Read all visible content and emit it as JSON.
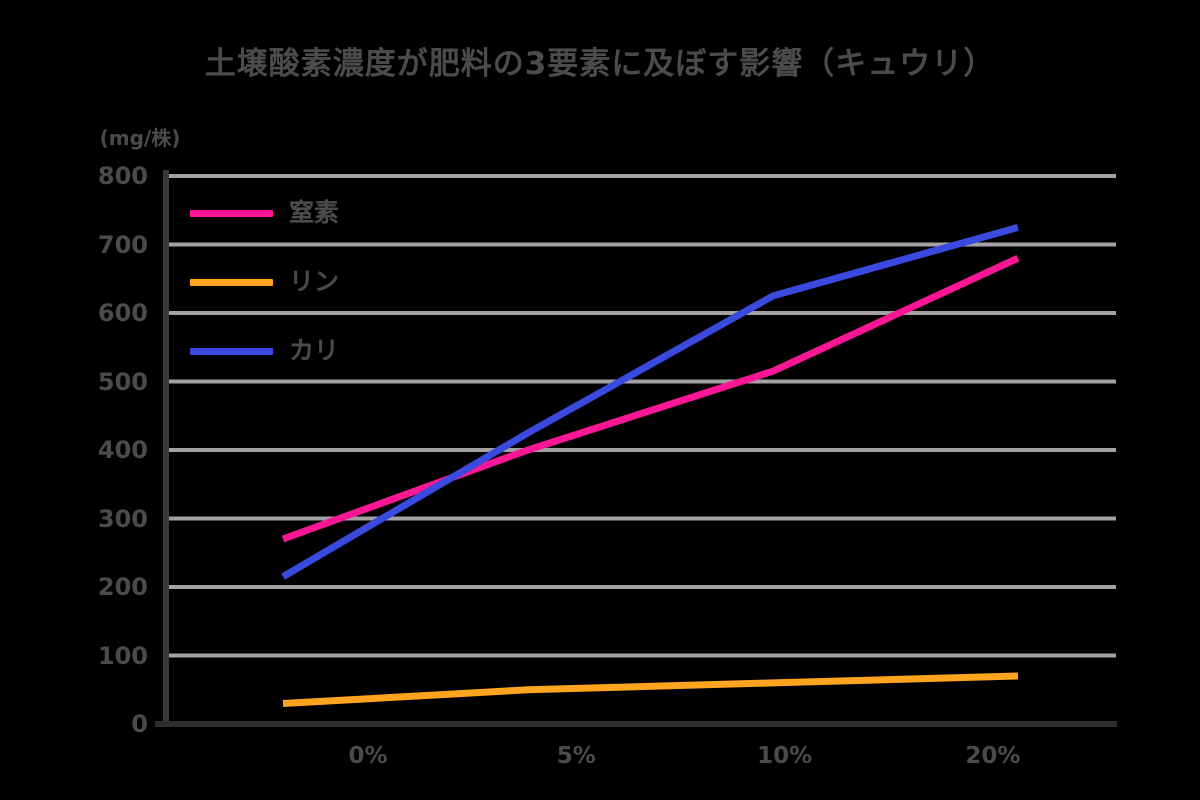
{
  "title": "土壌酸素濃度が肥料の3要素に及ぼす影響（キュウリ）",
  "unit_label": "(mg/株)",
  "colors": {
    "background": "#000000",
    "text": "#4b4b4b",
    "grid": "#a2a2a2",
    "y_axis": "#3a3a3a",
    "x_axis": "#2e2e2e"
  },
  "chart_data": {
    "type": "line",
    "title": "土壌酸素濃度が肥料の3要素に及ぼす影響（キュウリ）",
    "ylabel": "(mg/株)",
    "xlabel": "",
    "categories": [
      "0%",
      "5%",
      "10%",
      "20%"
    ],
    "series": [
      {
        "name": "窒素",
        "color": "#fa1694",
        "values": [
          270,
          400,
          515,
          680
        ]
      },
      {
        "name": "リン",
        "color": "#ffa41e",
        "values": [
          30,
          50,
          60,
          70
        ]
      },
      {
        "name": "カリ",
        "color": "#3a4adf",
        "values": [
          215,
          425,
          625,
          725
        ]
      }
    ],
    "ylim": [
      0,
      800
    ],
    "y_tick_step": 100,
    "grid": true,
    "legend_position": "top-left-inside",
    "line_width": 7
  }
}
